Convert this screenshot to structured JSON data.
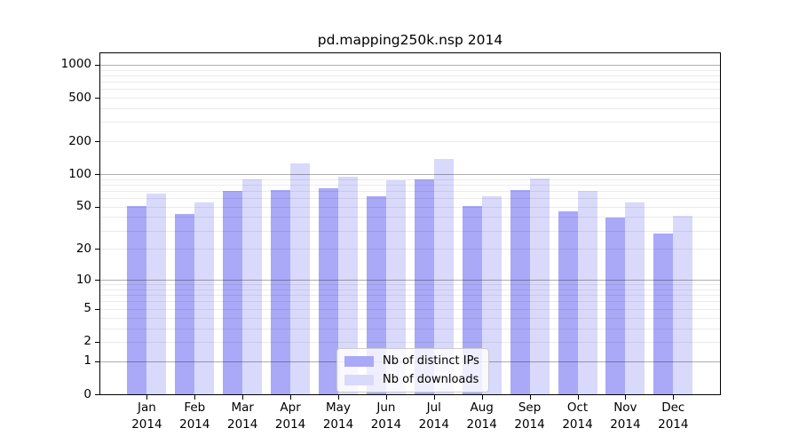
{
  "title": "pd.mapping250k.nsp 2014",
  "chart_data": {
    "type": "bar",
    "title": "pd.mapping250k.nsp 2014",
    "xlabel": "",
    "ylabel": "",
    "year": "2014",
    "categories": [
      "Jan",
      "Feb",
      "Mar",
      "Apr",
      "May",
      "Jun",
      "Jul",
      "Aug",
      "Sep",
      "Oct",
      "Nov",
      "Dec"
    ],
    "series": [
      {
        "key": "distinct_ips",
        "name": "Nb of distinct IPs",
        "color": "#a9a9f7",
        "values": [
          51,
          43,
          70,
          71,
          74,
          63,
          89,
          51,
          71,
          45,
          40,
          28
        ]
      },
      {
        "key": "downloads",
        "name": "Nb of downloads",
        "color": "#d9d9fb",
        "values": [
          66,
          55,
          90,
          126,
          95,
          88,
          139,
          63,
          92,
          70,
          55,
          41
        ]
      }
    ],
    "y_scale": "log1p",
    "y_ticks": [
      0,
      1,
      2,
      5,
      10,
      20,
      50,
      100,
      200,
      500,
      1000
    ],
    "y_major_gridlines": [
      1,
      10,
      100,
      1000
    ],
    "y_minor_gridlines": [
      2,
      3,
      4,
      5,
      6,
      7,
      8,
      9,
      20,
      30,
      40,
      50,
      60,
      70,
      80,
      90,
      200,
      300,
      400,
      500,
      600,
      700,
      800,
      900
    ],
    "ylim": [
      0,
      1000
    ],
    "grid": true,
    "legend_position": "lower center"
  },
  "colors": {
    "bar_distinct_ips": "#a9a9f7",
    "bar_downloads": "#d9d9fb",
    "grid_major": "rgba(0,0,0,0.32)",
    "grid_minor": "rgba(0,0,0,0.08)",
    "axis": "#000000",
    "legend_border": "#cccccc"
  }
}
